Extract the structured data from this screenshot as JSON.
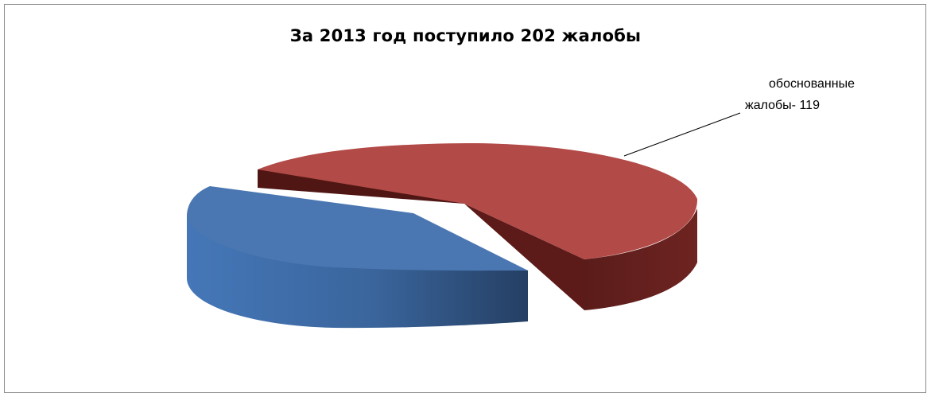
{
  "chart_data": {
    "type": "pie",
    "title": "За 2013 год поступило 202 жалобы",
    "total": 202,
    "slices": [
      {
        "label_line1": "обоснованные",
        "label_line2": "жалобы- 119",
        "value": 119,
        "color": "#b24a47",
        "side_color": "#6b1f1c"
      },
      {
        "label_line1": "",
        "label_line2": "",
        "value": 83,
        "color": "#4a77b2",
        "side_color": "#2e4f7a"
      }
    ],
    "view": "3d-exploded"
  }
}
